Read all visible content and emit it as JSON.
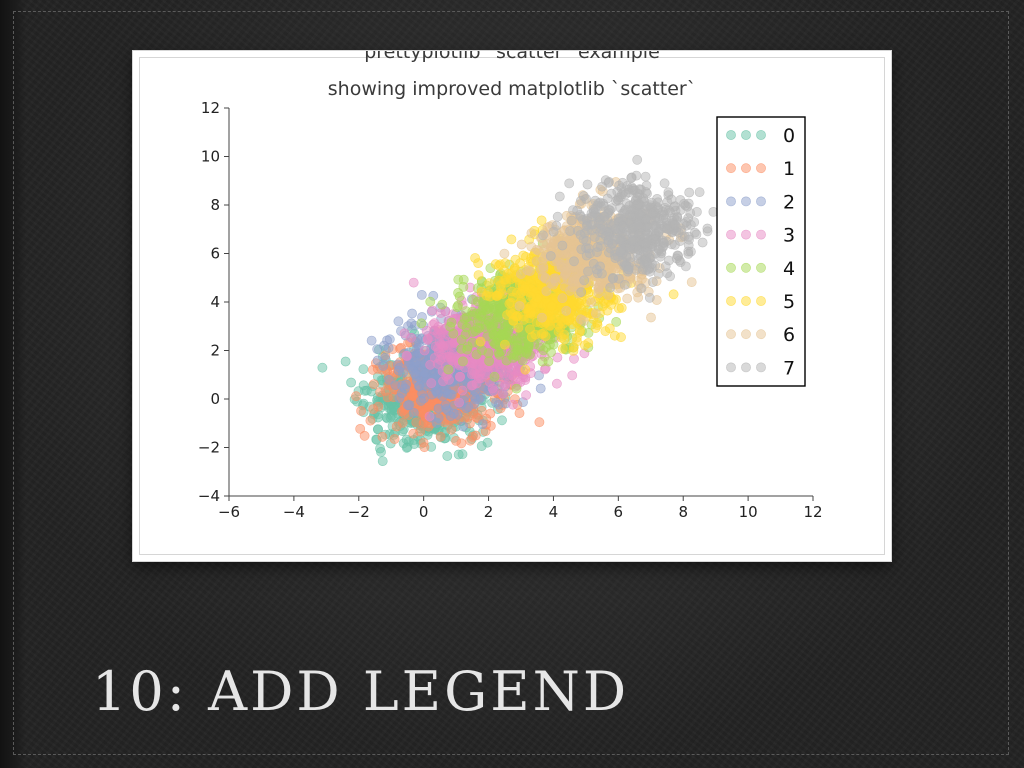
{
  "slide": {
    "heading": "10: ADD LEGEND"
  },
  "chart_data": {
    "type": "scatter",
    "title": "prettyplotlib `scatter` example",
    "subtitle": "showing improved matplotlib `scatter`",
    "xlabel": "",
    "ylabel": "",
    "xlim": [
      -6,
      12
    ],
    "ylim": [
      -4,
      12
    ],
    "xticks": [
      -6,
      -4,
      -2,
      0,
      2,
      4,
      6,
      8,
      10,
      12
    ],
    "yticks": [
      -4,
      -2,
      0,
      2,
      4,
      6,
      8,
      10,
      12
    ],
    "xtick_labels": [
      "−6",
      "−4",
      "−2",
      "0",
      "2",
      "4",
      "6",
      "8",
      "10",
      "12"
    ],
    "ytick_labels": [
      "−4",
      "−2",
      "0",
      "2",
      "4",
      "6",
      "8",
      "10",
      "12"
    ],
    "grid": false,
    "legend_position": "top-right",
    "point_alpha": 0.5,
    "series": [
      {
        "name": "0",
        "color": "#66c2a5",
        "center": [
          0.0,
          0.0
        ],
        "spread": [
          0.9,
          0.9
        ],
        "count": 500,
        "seed": 11
      },
      {
        "name": "1",
        "color": "#fc8d62",
        "center": [
          0.5,
          0.5
        ],
        "spread": [
          0.9,
          0.9
        ],
        "count": 500,
        "seed": 23
      },
      {
        "name": "2",
        "color": "#8da0cb",
        "center": [
          1.0,
          1.5
        ],
        "spread": [
          0.9,
          0.9
        ],
        "count": 500,
        "seed": 37
      },
      {
        "name": "3",
        "color": "#e78ac3",
        "center": [
          2.0,
          2.3
        ],
        "spread": [
          0.9,
          0.9
        ],
        "count": 500,
        "seed": 41
      },
      {
        "name": "4",
        "color": "#a6d854",
        "center": [
          3.0,
          3.5
        ],
        "spread": [
          0.9,
          0.9
        ],
        "count": 500,
        "seed": 53
      },
      {
        "name": "5",
        "color": "#ffd92f",
        "center": [
          4.0,
          4.5
        ],
        "spread": [
          0.9,
          0.9
        ],
        "count": 500,
        "seed": 67
      },
      {
        "name": "6",
        "color": "#e5c494",
        "center": [
          5.2,
          6.0
        ],
        "spread": [
          0.9,
          0.9
        ],
        "count": 500,
        "seed": 71
      },
      {
        "name": "7",
        "color": "#b3b3b3",
        "center": [
          6.5,
          7.0
        ],
        "spread": [
          0.9,
          0.9
        ],
        "count": 500,
        "seed": 89
      }
    ]
  }
}
